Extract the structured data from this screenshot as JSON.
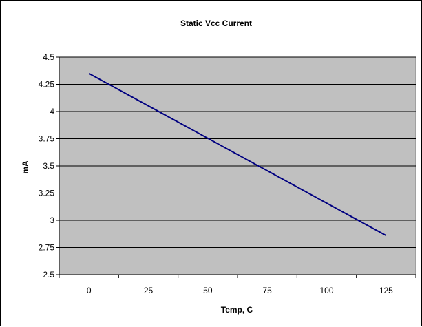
{
  "chart_data": {
    "type": "line",
    "title": "Static Vcc Current",
    "xlabel": "Temp, C",
    "ylabel": "mA",
    "x_categories": [
      "0",
      "25",
      "50",
      "75",
      "100",
      "125"
    ],
    "ylim": [
      2.5,
      4.5
    ],
    "yticks": [
      "2.5",
      "2.75",
      "3",
      "3.25",
      "3.5",
      "3.75",
      "4",
      "4.25",
      "4.5"
    ],
    "grid": true,
    "legend": "none",
    "series": [
      {
        "x": [
          0,
          125
        ],
        "values": [
          4.35,
          2.86
        ]
      }
    ],
    "colors": {
      "plot_background": "#c0c0c0",
      "line": "#000080",
      "gridline": "#000000"
    }
  }
}
